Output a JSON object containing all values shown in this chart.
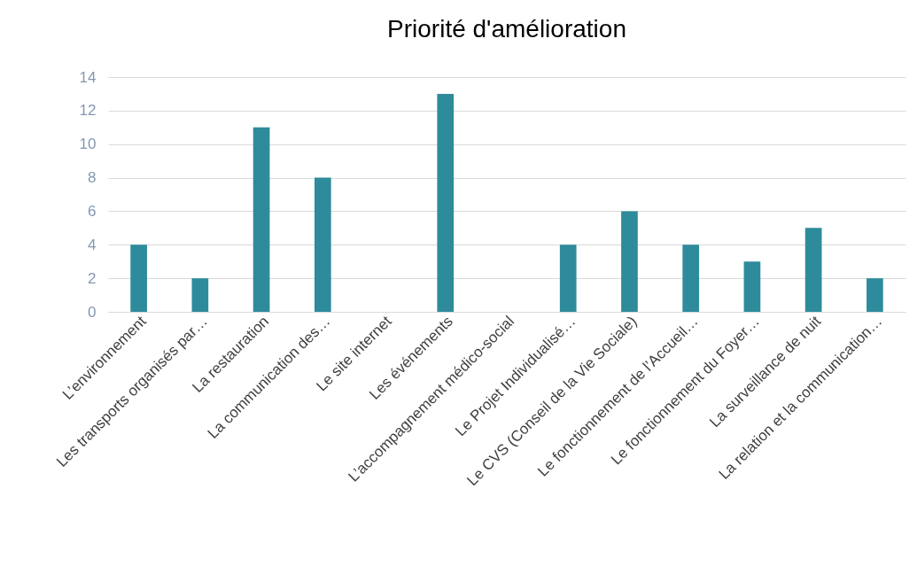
{
  "chart_data": {
    "type": "bar",
    "title": "Priorité d'amélioration",
    "categories": [
      "L’environnement",
      "Les transports organisés par…",
      "La restauration",
      "La communication des…",
      "Le site internet",
      "Les événements",
      "L’accompagnement médico-social",
      "Le Projet Individualisé…",
      "Le CVS (Conseil de la Vie Sociale)",
      "Le fonctionnement de l’Accueil…",
      "Le fonctionnement du Foyer…",
      "La surveillance de nuit",
      "La relation et la communication…"
    ],
    "values": [
      4,
      2,
      11,
      8,
      0,
      13,
      0,
      4,
      6,
      4,
      3,
      5,
      2
    ],
    "color": "#2e8b9b",
    "ylim": [
      0,
      14
    ],
    "yticks": [
      0,
      2,
      4,
      6,
      8,
      10,
      12,
      14
    ],
    "grid": "y"
  }
}
